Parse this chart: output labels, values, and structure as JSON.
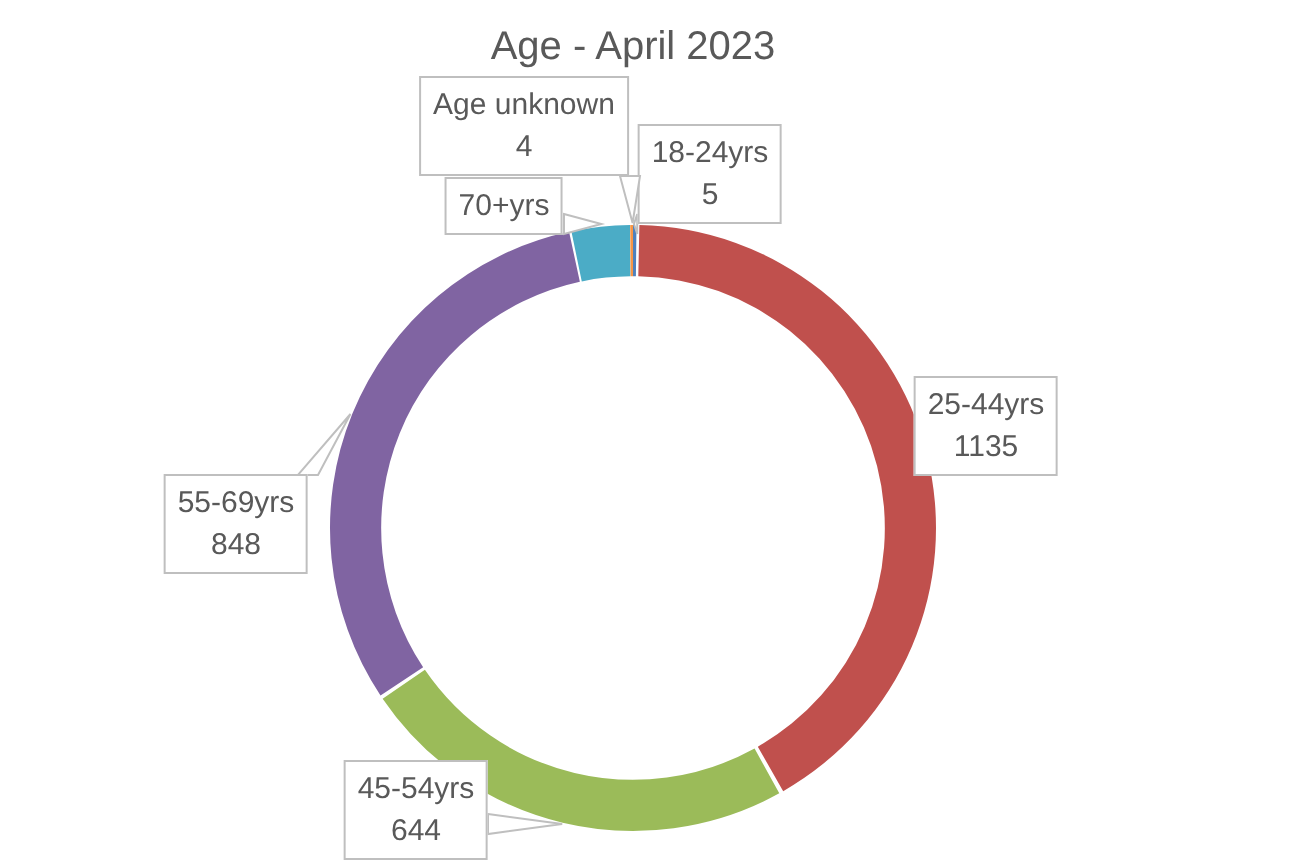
{
  "chart_data": {
    "type": "donut",
    "title": "Age - April 2023",
    "categories": [
      "18-24yrs",
      "25-44yrs",
      "45-54yrs",
      "55-69yrs",
      "70+yrs",
      "Age unknown"
    ],
    "values": [
      5,
      1135,
      644,
      848,
      85,
      4
    ],
    "value_labels": [
      "5",
      "1135",
      "644",
      "848",
      null,
      "4"
    ],
    "colors": [
      "#4f81bd",
      "#c0504d",
      "#9bbb59",
      "#8064a2",
      "#4bacc6",
      "#f79646"
    ],
    "legend": false
  }
}
